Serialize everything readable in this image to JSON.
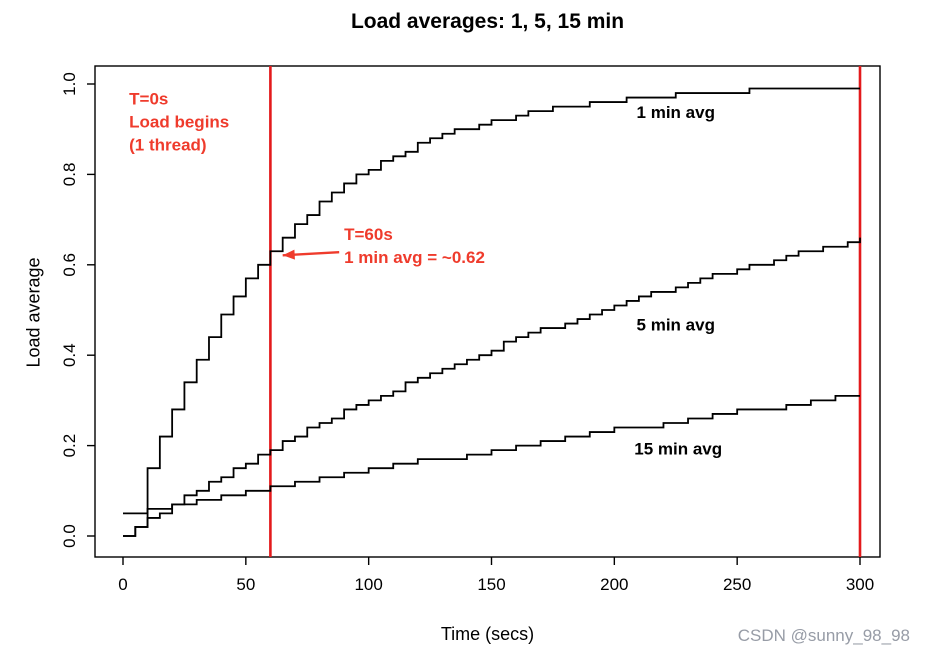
{
  "page": {
    "watermark": "CSDN @sunny_98_98"
  },
  "chart_data": {
    "type": "line",
    "style": "step-after",
    "title": "Load averages: 1, 5, 15 min",
    "xlabel": "Time (secs)",
    "ylabel": "Load average",
    "xlim": [
      0,
      300
    ],
    "ylim": [
      0,
      1.0
    ],
    "grid": false,
    "xticks": [
      0,
      50,
      100,
      150,
      200,
      250,
      300
    ],
    "yticks": [
      "0.0",
      "0.2",
      "0.4",
      "0.6",
      "0.8",
      "1.0"
    ],
    "line_color": "#000000",
    "vline_color": "#e31a1c",
    "annotation_color": "#ef3b2c",
    "vlines": [
      60,
      300
    ],
    "series": [
      {
        "name": "1 min avg",
        "label": "1 min avg",
        "label_at": [
          225,
          0.925
        ],
        "x0": 0,
        "dx": 5,
        "values": [
          0.0,
          0.02,
          0.15,
          0.22,
          0.28,
          0.34,
          0.39,
          0.44,
          0.49,
          0.53,
          0.57,
          0.6,
          0.63,
          0.66,
          0.69,
          0.71,
          0.74,
          0.76,
          0.78,
          0.8,
          0.81,
          0.83,
          0.84,
          0.85,
          0.87,
          0.88,
          0.89,
          0.9,
          0.9,
          0.91,
          0.92,
          0.92,
          0.93,
          0.94,
          0.94,
          0.95,
          0.95,
          0.95,
          0.96,
          0.96,
          0.96,
          0.97,
          0.97,
          0.97,
          0.97,
          0.98,
          0.98,
          0.98,
          0.98,
          0.98,
          0.98,
          0.99,
          0.99,
          0.99,
          0.99,
          0.99,
          0.99,
          0.99,
          0.99,
          0.99,
          0.99
        ]
      },
      {
        "name": "5 min avg",
        "label": "5 min avg",
        "label_at": [
          225,
          0.455
        ],
        "x0": 0,
        "dx": 5,
        "values": [
          0.0,
          0.02,
          0.04,
          0.05,
          0.07,
          0.09,
          0.1,
          0.12,
          0.13,
          0.15,
          0.16,
          0.18,
          0.19,
          0.21,
          0.22,
          0.24,
          0.25,
          0.26,
          0.28,
          0.29,
          0.3,
          0.31,
          0.32,
          0.34,
          0.35,
          0.36,
          0.37,
          0.38,
          0.39,
          0.4,
          0.41,
          0.43,
          0.44,
          0.45,
          0.46,
          0.46,
          0.47,
          0.48,
          0.49,
          0.5,
          0.51,
          0.52,
          0.53,
          0.54,
          0.54,
          0.55,
          0.56,
          0.57,
          0.58,
          0.58,
          0.59,
          0.6,
          0.6,
          0.61,
          0.62,
          0.63,
          0.63,
          0.64,
          0.64,
          0.65,
          0.66
        ]
      },
      {
        "name": "15 min avg",
        "label": "15 min avg",
        "label_at": [
          226,
          0.18
        ],
        "x0": 0,
        "dx": 10,
        "values": [
          0.05,
          0.06,
          0.07,
          0.08,
          0.09,
          0.1,
          0.11,
          0.12,
          0.13,
          0.14,
          0.15,
          0.16,
          0.17,
          0.17,
          0.18,
          0.19,
          0.2,
          0.21,
          0.22,
          0.23,
          0.24,
          0.24,
          0.25,
          0.26,
          0.27,
          0.28,
          0.28,
          0.29,
          0.3,
          0.31,
          0.31
        ]
      }
    ],
    "annotations": [
      {
        "lines": [
          "T=0s",
          "Load begins",
          "(1 thread)"
        ],
        "at": [
          2.5,
          0.955
        ],
        "anchor": "start"
      },
      {
        "lines": [
          "T=60s",
          "1 min avg = ~0.62"
        ],
        "at": [
          90,
          0.655
        ],
        "anchor": "start",
        "arrow": {
          "from": [
            88,
            0.628
          ],
          "to": [
            65,
            0.621
          ]
        }
      }
    ]
  }
}
